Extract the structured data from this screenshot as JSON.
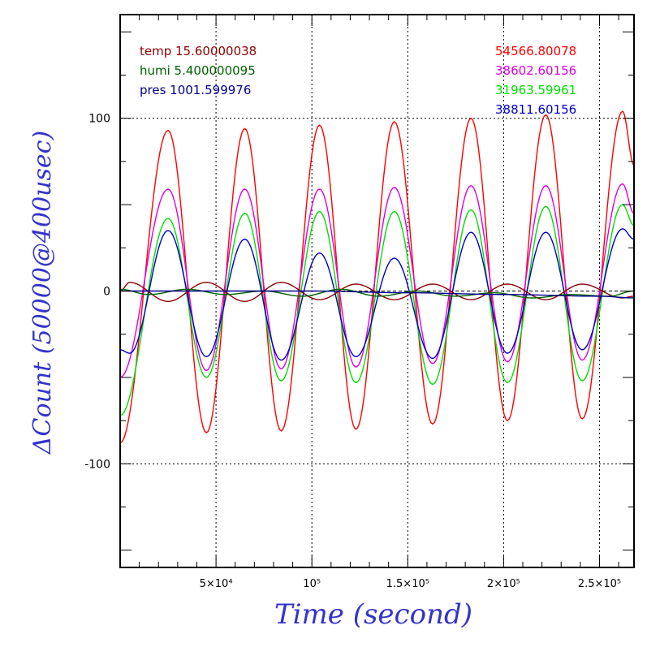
{
  "chart_data": {
    "type": "line",
    "xlabel": "Time (second)",
    "ylabel": "ΔCount (50000@400usec)",
    "xlim": [
      0,
      268000
    ],
    "ylim": [
      -160,
      160
    ],
    "x_ticks": [
      {
        "value": 50000,
        "label": "5×10⁴"
      },
      {
        "value": 100000,
        "label": "10⁵"
      },
      {
        "value": 150000,
        "label": "1.5×10⁵"
      },
      {
        "value": 200000,
        "label": "2×10⁵"
      },
      {
        "value": 250000,
        "label": "2.5×10⁵"
      }
    ],
    "y_ticks": [
      {
        "value": 100,
        "label": "100"
      },
      {
        "value": 0,
        "label": "0"
      },
      {
        "value": -100,
        "label": "-100"
      }
    ],
    "grid": true,
    "legend_left": [
      {
        "text": "temp 15.60000038",
        "color": "#8b0000"
      },
      {
        "text": "humi 5.400000095",
        "color": "#006400"
      },
      {
        "text": "pres 1001.599976",
        "color": "#00008b"
      }
    ],
    "legend_right": [
      {
        "text": "54566.80078",
        "color": "#ff0000"
      },
      {
        "text": "38602.60156",
        "color": "#e000e0"
      },
      {
        "text": "31963.59961",
        "color": "#00e000"
      },
      {
        "text": "38811.60156",
        "color": "#0000cc"
      }
    ],
    "series": [
      {
        "color": "#ff0000",
        "x": [
          0,
          25000,
          45000,
          65000,
          84000,
          104000,
          123000,
          143000,
          163000,
          183000,
          202000,
          222000,
          241000,
          262000,
          268000
        ],
        "y": [
          -88,
          93,
          -82,
          94,
          -81,
          96,
          -80,
          98,
          -77,
          100,
          -75,
          102,
          -74,
          104,
          73
        ]
      },
      {
        "color": "#e000e0",
        "x": [
          0,
          25000,
          45000,
          65000,
          84000,
          104000,
          123000,
          143000,
          163000,
          183000,
          202000,
          222000,
          241000,
          262000,
          268000
        ],
        "y": [
          -50,
          59,
          -46,
          59,
          -45,
          59,
          -44,
          60,
          -42,
          61,
          -41,
          61,
          -40,
          62,
          45
        ]
      },
      {
        "color": "#00e000",
        "x": [
          0,
          25000,
          45000,
          65000,
          84000,
          104000,
          123000,
          143000,
          163000,
          183000,
          202000,
          222000,
          241000,
          262000,
          268000
        ],
        "y": [
          -72,
          42,
          -50,
          45,
          -52,
          46,
          -53,
          46,
          -54,
          47,
          -53,
          49,
          -52,
          50,
          38
        ]
      },
      {
        "color": "#0000cc",
        "x": [
          0,
          5000,
          25000,
          45000,
          65000,
          84000,
          104000,
          123000,
          143000,
          163000,
          183000,
          202000,
          222000,
          241000,
          262000,
          268000
        ],
        "y": [
          -34,
          -36,
          35,
          -38,
          30,
          -40,
          22,
          -38,
          19,
          -39,
          34,
          -36,
          34,
          -34,
          36,
          30
        ]
      },
      {
        "color": "#8b0000",
        "x": [
          0,
          5000,
          25000,
          45000,
          65000,
          84000,
          104000,
          123000,
          143000,
          163000,
          183000,
          202000,
          222000,
          241000,
          262000,
          268000
        ],
        "y": [
          0,
          5,
          -6,
          5,
          -6,
          5,
          -5,
          4,
          -5,
          4,
          -5,
          4,
          -5,
          4,
          -4,
          -3
        ]
      },
      {
        "color": "#006400",
        "x": [
          0,
          15000,
          35000,
          55000,
          75000,
          95000,
          115000,
          135000,
          155000,
          175000,
          195000,
          215000,
          235000,
          255000,
          268000
        ],
        "y": [
          1,
          -2,
          1,
          -2,
          0,
          -3,
          1,
          -3,
          0,
          -3,
          -1,
          -4,
          -2,
          -3,
          0
        ]
      },
      {
        "color": "#00008b",
        "x": [
          0,
          50000,
          100000,
          150000,
          200000,
          250000,
          268000
        ],
        "y": [
          0,
          0,
          0,
          -1,
          -2,
          -3,
          -4
        ]
      }
    ]
  }
}
